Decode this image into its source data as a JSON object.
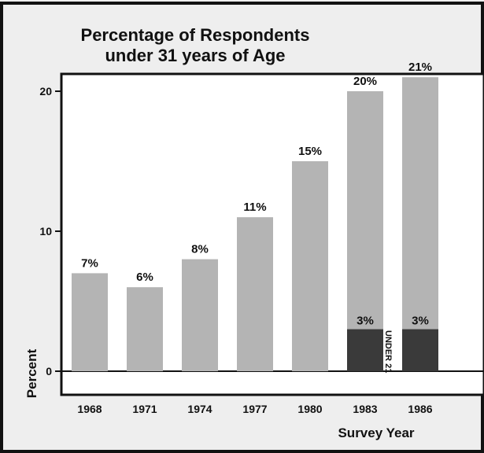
{
  "chart_data": {
    "type": "bar",
    "title": "Percentage of Respondents under 31 years of Age",
    "title_lines": [
      "Percentage of Respondents",
      "under 31 years of Age"
    ],
    "xlabel": "Survey Year",
    "ylabel": "Percent",
    "ylim": [
      0,
      22
    ],
    "yticks": [
      0,
      10,
      20
    ],
    "ytick_labels": [
      "0",
      "10",
      "20"
    ],
    "categories": [
      "1968",
      "1971",
      "1974",
      "1977",
      "1980",
      "1983",
      "1986"
    ],
    "series": [
      {
        "name": "",
        "values": [
          7,
          6,
          8,
          11,
          15,
          20,
          21
        ],
        "labels": [
          "7%",
          "6%",
          "8%",
          "11%",
          "15%",
          "20%",
          "21%"
        ]
      },
      {
        "name": "UNDER 21",
        "values": [
          null,
          null,
          null,
          null,
          null,
          3,
          3
        ],
        "labels": [
          "",
          "",
          "",
          "",
          "",
          "3%",
          "3%"
        ]
      }
    ],
    "annotation": "UNDER 21",
    "grid": false,
    "colors": {
      "background": "#eeeeee",
      "plot_background": "#ffffff",
      "bar": "#b4b4b4",
      "under21_bar": "#3a3a3a",
      "frame": "#111111"
    }
  }
}
